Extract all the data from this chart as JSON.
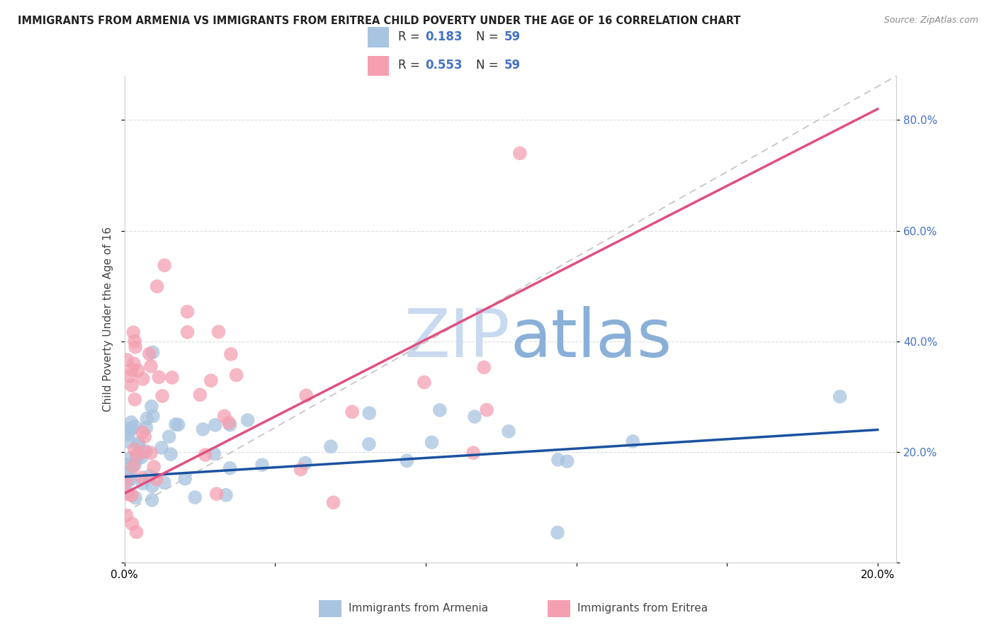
{
  "title": "IMMIGRANTS FROM ARMENIA VS IMMIGRANTS FROM ERITREA CHILD POVERTY UNDER THE AGE OF 16 CORRELATION CHART",
  "source": "Source: ZipAtlas.com",
  "ylabel": "Child Poverty Under the Age of 16",
  "armenia_R": 0.183,
  "armenia_N": 59,
  "eritrea_R": 0.553,
  "eritrea_N": 59,
  "armenia_color": "#a8c4e0",
  "eritrea_color": "#f4a0b0",
  "armenia_line_color": "#1a52a0",
  "eritrea_line_color": "#e05080",
  "background_color": "#ffffff",
  "watermark": "ZIPatlas",
  "watermark_color_zip": "#c8daf0",
  "watermark_color_atlas": "#8ab0d8",
  "xlim": [
    0.0,
    0.205
  ],
  "ylim": [
    0.0,
    0.88
  ],
  "yticks": [
    0.0,
    0.2,
    0.4,
    0.6,
    0.8
  ],
  "ytick_right_labels": [
    "",
    "20.0%",
    "40.0%",
    "60.0%",
    "80.0%"
  ],
  "xtick_labels": [
    "0.0%",
    "",
    "",
    "",
    "",
    "20.0%"
  ],
  "legend_box_color": "#ffffff",
  "legend_edge_color": "#cccccc",
  "grid_color": "#dddddd",
  "spine_color": "#cccccc",
  "source_color": "#888888",
  "right_tick_color": "#4472c4",
  "armenia_trendline": [
    0.0,
    0.2,
    0.155,
    0.24
  ],
  "eritrea_trendline": [
    0.0,
    0.2,
    0.125,
    0.82
  ],
  "diag_trendline": [
    0.0,
    0.205,
    0.09,
    0.88
  ]
}
